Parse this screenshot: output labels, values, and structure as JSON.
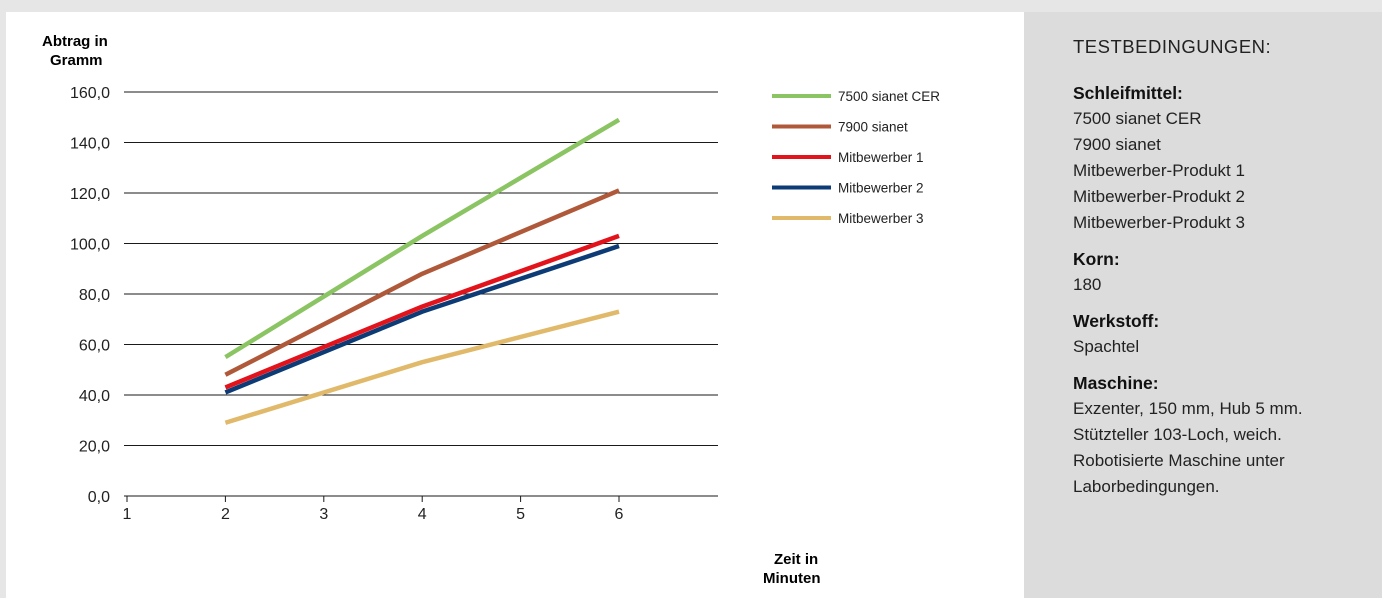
{
  "chart_data": {
    "type": "line",
    "ylabel": "Abtrag in Gramm",
    "xlabel": "Zeit in Minuten",
    "y_ticks": [
      "160,0",
      "140,0",
      "120,0",
      "100,0",
      "80,0",
      "60,0",
      "40,0",
      "20,0",
      "0,0"
    ],
    "x_ticks": [
      "1",
      "2",
      "3",
      "4",
      "5",
      "6"
    ],
    "ylim": [
      0,
      160
    ],
    "xlim": [
      1,
      7
    ],
    "grid": true,
    "legend_position": "top-right",
    "series": [
      {
        "name": "7500 sianet CER",
        "color": "#8bc462",
        "x": [
          2,
          4,
          6
        ],
        "y": [
          55,
          103,
          149
        ]
      },
      {
        "name": "7900 sianet",
        "color": "#b0593a",
        "x": [
          2,
          4,
          6
        ],
        "y": [
          48,
          88,
          121
        ]
      },
      {
        "name": "Mitbewerber 1",
        "color": "#e3131c",
        "x": [
          2,
          4,
          6
        ],
        "y": [
          43,
          75,
          103
        ]
      },
      {
        "name": "Mitbewerber 2",
        "color": "#0c3b75",
        "x": [
          2,
          4,
          6
        ],
        "y": [
          41,
          73,
          99
        ]
      },
      {
        "name": "Mitbewerber 3",
        "color": "#e1b96b",
        "x": [
          2,
          4,
          6
        ],
        "y": [
          29,
          53,
          73
        ]
      }
    ]
  },
  "info": {
    "title": "TESTBEDINGUNGEN:",
    "sections": [
      {
        "label": "Schleifmittel:",
        "lines": [
          "7500 sianet CER",
          "7900 sianet",
          "Mitbewerber-Produkt 1",
          "Mitbewerber-Produkt 2",
          "Mitbewerber-Produkt 3"
        ]
      },
      {
        "label": "Korn:",
        "lines": [
          "180"
        ]
      },
      {
        "label": "Werkstoff:",
        "lines": [
          "Spachtel"
        ]
      },
      {
        "label": "Maschine:",
        "lines": [
          "Exzenter, 150 mm, Hub 5 mm.",
          "Stützteller 103-Loch, weich.",
          "Robotisierte Maschine unter",
          "Laborbedingungen."
        ]
      }
    ]
  }
}
